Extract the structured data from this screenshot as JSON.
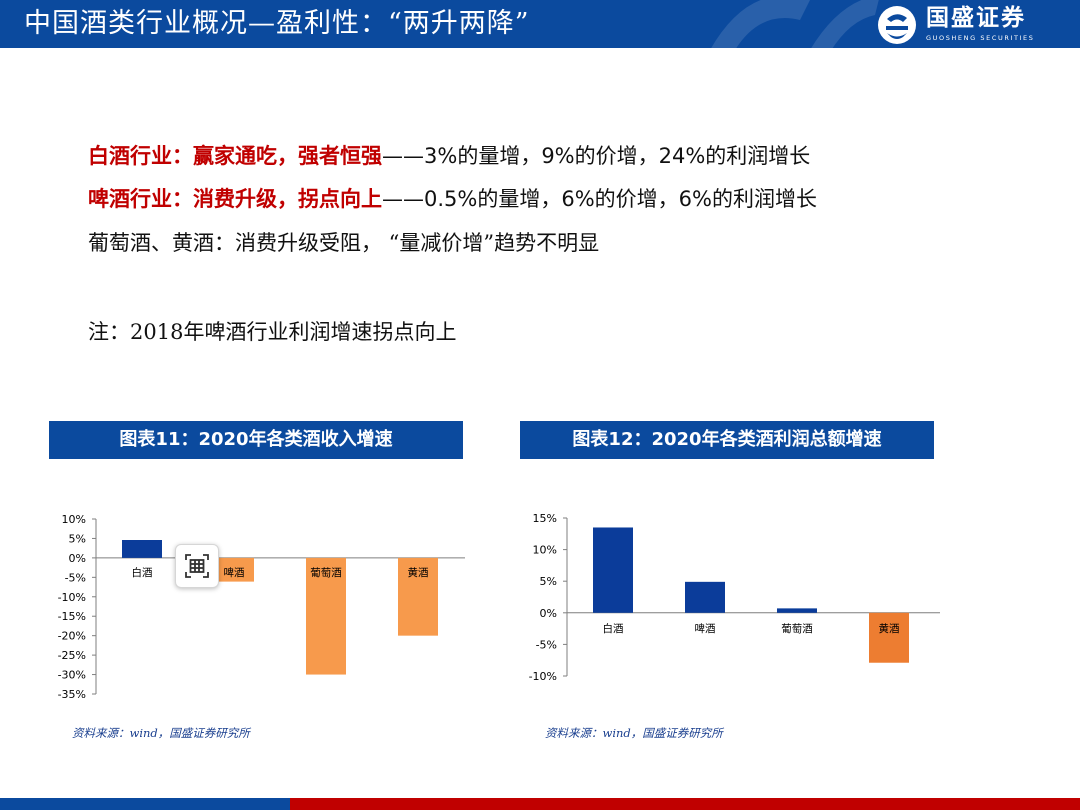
{
  "header": {
    "title": "中国酒类行业概况—盈利性：“两升两降”",
    "logo_cn": "国盛证券",
    "logo_en": "GUOSHENG SECURITIES",
    "color": "#0B4A9E"
  },
  "body": {
    "line1_highlight": "白酒行业：赢家通吃，强者恒强",
    "line1_rest": "——3%的量增，9%的价增，24%的利润增长",
    "line2_highlight": "啤酒行业：消费升级，拐点向上",
    "line2_rest": "——0.5%的量增，6%的价增，6%的利润增长",
    "line3": "葡萄酒、黄酒：消费升级受阻，  “量减价增”趋势不明显",
    "note": "注：2018年啤酒行业利润增速拐点向上",
    "highlight_color": "#C00000"
  },
  "chart_data": [
    {
      "type": "bar",
      "title": "图表11：2020年各类酒收入增速",
      "categories": [
        "白酒",
        "啤酒",
        "葡萄酒",
        "黄酒"
      ],
      "values": [
        4.6,
        -6.1,
        -30,
        -20
      ],
      "colors": [
        "#0B3C9A",
        "#F79A4C",
        "#F79A4C",
        "#F79A4C"
      ],
      "ylim": [
        -35,
        10
      ],
      "yticks": [
        "10%",
        "5%",
        "0%",
        "-5%",
        "-10%",
        "-15%",
        "-20%",
        "-25%",
        "-30%",
        "-35%"
      ],
      "ytick_values": [
        10,
        5,
        0,
        -5,
        -10,
        -15,
        -20,
        -25,
        -30,
        -35
      ],
      "xlabel": "",
      "ylabel": "",
      "grid": false,
      "legend": "none",
      "source": "资料来源：wind，国盛证券研究所"
    },
    {
      "type": "bar",
      "title": "图表12：2020年各类酒利润总额增速",
      "categories": [
        "白酒",
        "啤酒",
        "葡萄酒",
        "黄酒"
      ],
      "values": [
        13.5,
        4.9,
        0.7,
        -7.9
      ],
      "colors": [
        "#0B3C9A",
        "#0B3C9A",
        "#0B3C9A",
        "#ED7D31"
      ],
      "ylim": [
        -10,
        15
      ],
      "yticks": [
        "15%",
        "10%",
        "5%",
        "0%",
        "-5%",
        "-10%"
      ],
      "ytick_values": [
        15,
        10,
        5,
        0,
        -5,
        -10
      ],
      "xlabel": "",
      "ylabel": "",
      "grid": false,
      "legend": "none",
      "source": "资料来源：wind，国盛证券研究所"
    }
  ],
  "toolbar": {
    "ocr_icon": "text-recognition-icon"
  }
}
